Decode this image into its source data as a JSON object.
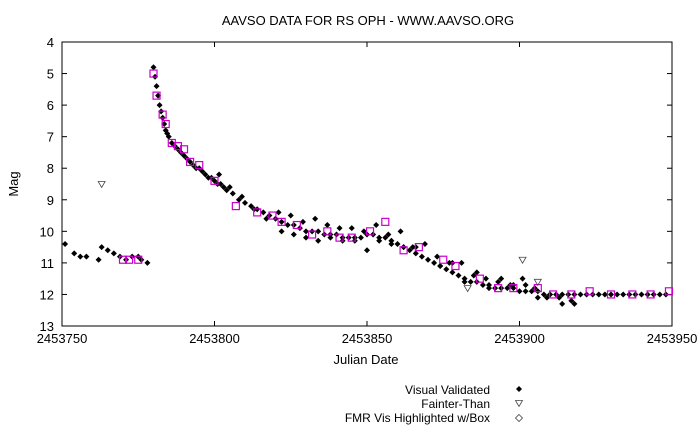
{
  "chart_data": {
    "type": "scatter",
    "title": "AAVSO DATA FOR RS OPH - WWW.AAVSO.ORG",
    "xlabel": "Julian Date",
    "ylabel": "Mag",
    "xlim": [
      2453750,
      2453950
    ],
    "ylim": [
      13,
      4
    ],
    "y_inverted": true,
    "x_ticks": [
      "2453750",
      "2453800",
      "2453850",
      "2453900",
      "2453950"
    ],
    "y_ticks": [
      "4",
      "5",
      "6",
      "7",
      "8",
      "9",
      "10",
      "11",
      "12",
      "13"
    ],
    "legend_position": "bottom-right",
    "colors": {
      "visual": "#000000",
      "fainter": "#444444",
      "fmr": "#cc00cc"
    },
    "series": [
      {
        "name": "Visual Validated",
        "marker": "filled-diamond",
        "x": [
          2453751,
          2453754,
          2453756,
          2453758,
          2453762,
          2453763,
          2453765,
          2453767,
          2453769,
          2453771,
          2453773,
          2453775,
          2453776,
          2453778,
          2453780.0,
          2453780.5,
          2453781.0,
          2453781.5,
          2453782.0,
          2453782.5,
          2453783.0,
          2453783.5,
          2453784.0,
          2453784.5,
          2453785.0,
          2453786.0,
          2453787.0,
          2453788.0,
          2453789.0,
          2453790.0,
          2453791.0,
          2453792.0,
          2453793.0,
          2453794.0,
          2453795.0,
          2453796.0,
          2453797.0,
          2453798.0,
          2453799.0,
          2453800.0,
          2453801.0,
          2453802.0,
          2453803.0,
          2453804.0,
          2453806.0,
          2453808.0,
          2453810.0,
          2453812.0,
          2453814.0,
          2453816.0,
          2453818.0,
          2453820.0,
          2453822.0,
          2453824.0,
          2453826.0,
          2453828.0,
          2453830.0,
          2453832.0,
          2453834.0,
          2453836.0,
          2453838.0,
          2453840.0,
          2453842.0,
          2453844.0,
          2453846.0,
          2453848.0,
          2453850.0,
          2453852.0,
          2453854.0,
          2453856.0,
          2453858.0,
          2453860.0,
          2453862.0,
          2453864.0,
          2453866.0,
          2453868.0,
          2453870.0,
          2453872.0,
          2453874.0,
          2453876.0,
          2453878.0,
          2453880.0,
          2453882.0,
          2453884.0,
          2453886.0,
          2453888.0,
          2453890.0,
          2453892.0,
          2453894.0,
          2453896.0,
          2453898.0,
          2453900.0,
          2453902.0,
          2453904.0,
          2453906.0,
          2453908.0,
          2453910.0,
          2453912.0,
          2453914.0,
          2453916.0,
          2453918.0,
          2453920.0,
          2453922.0,
          2453924.0,
          2453926.0,
          2453928.0,
          2453930.0,
          2453932.0,
          2453934.0,
          2453936.0,
          2453938.0,
          2453940.0,
          2453942.0,
          2453944.0,
          2453946.0,
          2453948.0,
          2453801.5,
          2453805.0,
          2453809.0,
          2453813.0,
          2453817.0,
          2453821.0,
          2453825.0,
          2453829.0,
          2453833.0,
          2453837.0,
          2453841.0,
          2453845.0,
          2453849.0,
          2453853.0,
          2453857.0,
          2453861.0,
          2453865.0,
          2453869.0,
          2453873.0,
          2453877.0,
          2453881.0,
          2453885.0,
          2453889.0,
          2453893.0,
          2453897.0,
          2453901.0,
          2453905.0,
          2453909.0,
          2453913.0,
          2453917.0,
          2453822.0,
          2453826.0,
          2453830.0,
          2453834.0,
          2453838.0,
          2453842.0,
          2453846.0,
          2453850.0,
          2453854.0,
          2453858.0,
          2453862.0,
          2453866.0,
          2453874.0,
          2453878.0,
          2453882.0,
          2453886.0,
          2453890.0,
          2453894.0,
          2453898.0,
          2453902.0,
          2453906.0,
          2453910.0,
          2453914.0,
          2453918.0
        ],
        "y": [
          10.4,
          10.7,
          10.8,
          10.8,
          10.9,
          10.5,
          10.6,
          10.7,
          10.8,
          10.9,
          10.8,
          10.8,
          10.9,
          11.0,
          4.8,
          5.1,
          5.4,
          5.7,
          6.0,
          6.2,
          6.4,
          6.6,
          6.8,
          6.9,
          7.0,
          7.2,
          7.3,
          7.4,
          7.5,
          7.6,
          7.7,
          7.8,
          7.9,
          8.0,
          8.0,
          8.1,
          8.2,
          8.3,
          8.3,
          8.4,
          8.5,
          8.5,
          8.6,
          8.7,
          8.8,
          9.0,
          9.1,
          9.2,
          9.3,
          9.4,
          9.5,
          9.6,
          9.7,
          9.8,
          9.8,
          9.9,
          10.0,
          10.0,
          10.0,
          10.1,
          10.1,
          10.1,
          10.2,
          10.2,
          10.2,
          10.2,
          10.1,
          10.1,
          10.2,
          10.2,
          10.3,
          10.4,
          10.5,
          10.6,
          10.7,
          10.8,
          10.9,
          11.0,
          11.1,
          11.2,
          11.3,
          11.4,
          11.5,
          11.6,
          11.6,
          11.7,
          11.7,
          11.8,
          11.8,
          11.8,
          11.8,
          11.9,
          11.9,
          11.9,
          11.9,
          12.0,
          12.0,
          12.0,
          12.0,
          12.0,
          12.0,
          12.0,
          12.0,
          12.0,
          12.0,
          12.0,
          12.0,
          12.0,
          12.0,
          12.0,
          12.0,
          12.0,
          12.0,
          12.0,
          12.0,
          12.0,
          8.2,
          8.6,
          8.9,
          9.3,
          9.6,
          9.4,
          9.5,
          9.7,
          9.6,
          9.8,
          9.9,
          9.9,
          10.0,
          9.8,
          10.1,
          10.0,
          10.5,
          10.4,
          10.8,
          11.0,
          11.0,
          11.4,
          11.5,
          11.6,
          11.7,
          11.5,
          11.8,
          12.1,
          12.1,
          12.2,
          10.0,
          10.1,
          10.2,
          10.3,
          10.2,
          10.3,
          10.3,
          10.6,
          10.3,
          10.4,
          10.5,
          10.5,
          11.1,
          11.0,
          11.6,
          11.3,
          11.8,
          11.5,
          11.7,
          11.7,
          12.1,
          12.0,
          12.3,
          12.3
        ]
      },
      {
        "name": "Fainter-Than",
        "marker": "open-triangle-down",
        "x": [
          2453763,
          2453883,
          2453901,
          2453906
        ],
        "y": [
          8.5,
          11.8,
          10.9,
          11.6
        ]
      },
      {
        "name": "FMR Vis Highlighted w/Box",
        "marker": "open-diamond-box",
        "x": [
          2453770,
          2453772,
          2453775,
          2453780,
          2453781,
          2453783,
          2453784,
          2453786,
          2453788,
          2453790,
          2453792,
          2453795,
          2453800,
          2453807,
          2453814,
          2453819,
          2453822,
          2453827,
          2453832,
          2453837,
          2453841,
          2453845,
          2453851,
          2453856,
          2453862,
          2453867,
          2453875,
          2453879,
          2453887,
          2453893,
          2453898,
          2453906,
          2453911,
          2453917,
          2453923,
          2453930,
          2453937,
          2453943,
          2453949
        ],
        "y": [
          10.9,
          10.9,
          10.9,
          5.0,
          5.7,
          6.3,
          6.6,
          7.2,
          7.3,
          7.4,
          7.8,
          7.9,
          8.4,
          9.2,
          9.4,
          9.5,
          9.7,
          9.8,
          10.1,
          10.0,
          10.2,
          10.2,
          10.0,
          9.7,
          10.6,
          10.5,
          10.9,
          11.1,
          11.5,
          11.8,
          11.8,
          11.8,
          12.0,
          12.0,
          11.9,
          12.0,
          12.0,
          12.0,
          11.9
        ]
      }
    ],
    "legend": {
      "visual": "Visual Validated",
      "fainter": "Fainter-Than",
      "fmr": "FMR Vis Highlighted w/Box"
    }
  }
}
